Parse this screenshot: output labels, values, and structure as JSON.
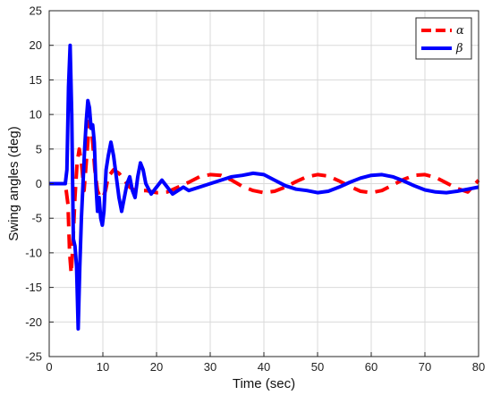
{
  "chart_data": {
    "type": "line",
    "title": "",
    "xlabel": "Time (sec)",
    "ylabel": "Swing angles (deg)",
    "xlim": [
      0,
      80
    ],
    "ylim": [
      -25,
      25
    ],
    "xticks": [
      0,
      10,
      20,
      30,
      40,
      50,
      60,
      70,
      80
    ],
    "yticks": [
      -25,
      -20,
      -15,
      -10,
      -5,
      0,
      5,
      10,
      15,
      20,
      25
    ],
    "grid": true,
    "legend_position": "top-right",
    "series": [
      {
        "name": "α",
        "color": "#ff0000",
        "style": "dashed",
        "x": [
          0,
          3,
          3.5,
          3.8,
          4.1,
          4.4,
          4.8,
          5.2,
          5.6,
          6.0,
          6.5,
          7.0,
          7.5,
          8.0,
          8.5,
          9.0,
          9.5,
          10.0,
          10.5,
          11.0,
          12.0,
          13.0,
          14.0,
          15.0,
          16.0,
          18.0,
          20.0,
          22.0,
          24.0,
          26.0,
          28.0,
          30.0,
          32.0,
          34.0,
          36.0,
          38.0,
          40.0,
          42.0,
          44.0,
          46.0,
          48.0,
          50.0,
          52.0,
          54.0,
          56.0,
          58.0,
          60.0,
          62.0,
          64.0,
          66.0,
          68.0,
          70.0,
          72.0,
          74.0,
          76.0,
          78.0,
          80.0
        ],
        "y": [
          0,
          0,
          -3,
          -10,
          -13,
          -9,
          -2,
          3,
          5,
          3,
          -1,
          4,
          9,
          7,
          2,
          -1,
          -2,
          -2,
          -1,
          1,
          2,
          1.5,
          0.5,
          -0.5,
          -1,
          -1,
          -1.3,
          -1.2,
          -0.5,
          0.2,
          1,
          1.3,
          1.2,
          0.5,
          -0.4,
          -1,
          -1.3,
          -1.1,
          -0.5,
          0.3,
          1,
          1.3,
          1.1,
          0.4,
          -0.4,
          -1.1,
          -1.3,
          -1,
          -0.2,
          0.6,
          1.2,
          1.3,
          0.9,
          0.1,
          -0.7,
          -1.2,
          0.5
        ]
      },
      {
        "name": "β",
        "color": "#0000ff",
        "style": "solid",
        "x": [
          0,
          3,
          3.3,
          3.6,
          3.9,
          4.2,
          4.5,
          4.8,
          5.1,
          5.4,
          5.7,
          6.0,
          6.3,
          6.6,
          6.9,
          7.2,
          7.5,
          7.8,
          8.1,
          8.4,
          8.7,
          9.0,
          9.3,
          9.6,
          9.9,
          10.2,
          10.6,
          11.0,
          11.5,
          12.0,
          12.5,
          13.0,
          13.5,
          14.0,
          14.5,
          15.0,
          15.5,
          16.0,
          16.5,
          17.0,
          17.5,
          18.0,
          19.0,
          20.0,
          21.0,
          22.0,
          23.0,
          24.0,
          25.0,
          26.0,
          28.0,
          30.0,
          32.0,
          34.0,
          36.0,
          38.0,
          40.0,
          42.0,
          44.0,
          46.0,
          48.0,
          50.0,
          52.0,
          54.0,
          56.0,
          58.0,
          60.0,
          62.0,
          64.0,
          66.0,
          68.0,
          70.0,
          72.0,
          74.0,
          76.0,
          78.0,
          80.0
        ],
        "y": [
          0,
          0,
          2,
          14,
          20,
          10,
          -8,
          -9,
          -12,
          -21,
          -12,
          -5,
          0,
          5,
          9,
          12,
          11,
          8,
          8.5,
          6,
          0,
          -4,
          -2,
          -5,
          -6,
          -4,
          2,
          4,
          6,
          4,
          1,
          -2,
          -4,
          -2,
          0,
          1,
          -1,
          -2,
          1,
          3,
          2,
          0,
          -1.5,
          -0.5,
          0.5,
          -0.5,
          -1.5,
          -1,
          -0.5,
          -1,
          -0.5,
          0,
          0.5,
          1,
          1.2,
          1.5,
          1.3,
          0.5,
          -0.3,
          -0.8,
          -1,
          -1.3,
          -1.1,
          -0.5,
          0.2,
          0.8,
          1.2,
          1.3,
          1.0,
          0.4,
          -0.3,
          -0.9,
          -1.2,
          -1.3,
          -1.1,
          -0.8,
          -0.5
        ]
      }
    ]
  }
}
